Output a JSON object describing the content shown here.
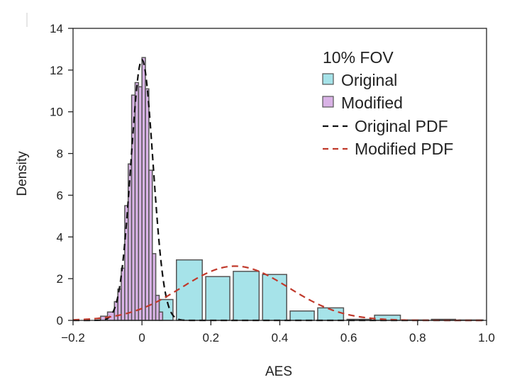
{
  "chart_data": {
    "type": "bar",
    "xlabel": "AES",
    "ylabel": "Density",
    "xlim": [
      -0.2,
      1.0
    ],
    "ylim": [
      0,
      14
    ],
    "xticks": [
      -0.2,
      0,
      0.2,
      0.4,
      0.6,
      0.8,
      1.0
    ],
    "xtick_labels": [
      "−0.2",
      "0",
      "0.2",
      "0.4",
      "0.6",
      "0.8",
      "1.0"
    ],
    "yticks": [
      0,
      2,
      4,
      6,
      8,
      10,
      12,
      14
    ],
    "ytick_labels": [
      "0",
      "2",
      "4",
      "6",
      "8",
      "10",
      "12",
      "14"
    ],
    "grid": false,
    "legend_position": "top-right",
    "legend_title": "10% FOV",
    "series": [
      {
        "name": "Original",
        "kind": "histogram",
        "color": "#a6e3e9",
        "edge_color": "#555555",
        "bins": [
          {
            "x0": 0.05,
            "x1": 0.09,
            "value": 1.0
          },
          {
            "x0": 0.1,
            "x1": 0.175,
            "value": 2.9
          },
          {
            "x0": 0.185,
            "x1": 0.255,
            "value": 2.1
          },
          {
            "x0": 0.265,
            "x1": 0.34,
            "value": 2.35
          },
          {
            "x0": 0.35,
            "x1": 0.42,
            "value": 2.2
          },
          {
            "x0": 0.43,
            "x1": 0.5,
            "value": 0.45
          },
          {
            "x0": 0.51,
            "x1": 0.585,
            "value": 0.6
          },
          {
            "x0": 0.595,
            "x1": 0.665,
            "value": 0.05
          },
          {
            "x0": 0.675,
            "x1": 0.75,
            "value": 0.25
          },
          {
            "x0": 0.76,
            "x1": 0.83,
            "value": 0.02
          },
          {
            "x0": 0.84,
            "x1": 0.91,
            "value": 0.05
          },
          {
            "x0": 0.92,
            "x1": 0.99,
            "value": 0.02
          }
        ]
      },
      {
        "name": "Modified",
        "kind": "histogram",
        "color": "#d9b3e6",
        "edge_color": "#555555",
        "bins": [
          {
            "x0": -0.12,
            "x1": -0.1,
            "value": 0.2
          },
          {
            "x0": -0.1,
            "x1": -0.08,
            "value": 0.4
          },
          {
            "x0": -0.08,
            "x1": -0.07,
            "value": 0.9
          },
          {
            "x0": -0.07,
            "x1": -0.06,
            "value": 1.5
          },
          {
            "x0": -0.06,
            "x1": -0.05,
            "value": 2.5
          },
          {
            "x0": -0.05,
            "x1": -0.04,
            "value": 5.5
          },
          {
            "x0": -0.04,
            "x1": -0.03,
            "value": 7.5
          },
          {
            "x0": -0.03,
            "x1": -0.02,
            "value": 10.8
          },
          {
            "x0": -0.02,
            "x1": -0.01,
            "value": 11.4
          },
          {
            "x0": -0.01,
            "x1": 0.0,
            "value": 11.2
          },
          {
            "x0": 0.0,
            "x1": 0.01,
            "value": 12.6
          },
          {
            "x0": 0.01,
            "x1": 0.02,
            "value": 11.1
          },
          {
            "x0": 0.02,
            "x1": 0.03,
            "value": 7.2
          },
          {
            "x0": 0.03,
            "x1": 0.04,
            "value": 3.2
          },
          {
            "x0": 0.04,
            "x1": 0.05,
            "value": 1.2
          },
          {
            "x0": 0.05,
            "x1": 0.06,
            "value": 0.4
          }
        ]
      },
      {
        "name": "Original PDF",
        "kind": "line",
        "style": "dashed",
        "color": "#111111",
        "mean": 0.0,
        "sd": 0.032,
        "peak": 12.5
      },
      {
        "name": "Modified PDF",
        "kind": "line",
        "style": "dashed",
        "color": "#c0392b",
        "mean": 0.27,
        "sd": 0.155,
        "peak": 2.6
      }
    ]
  }
}
